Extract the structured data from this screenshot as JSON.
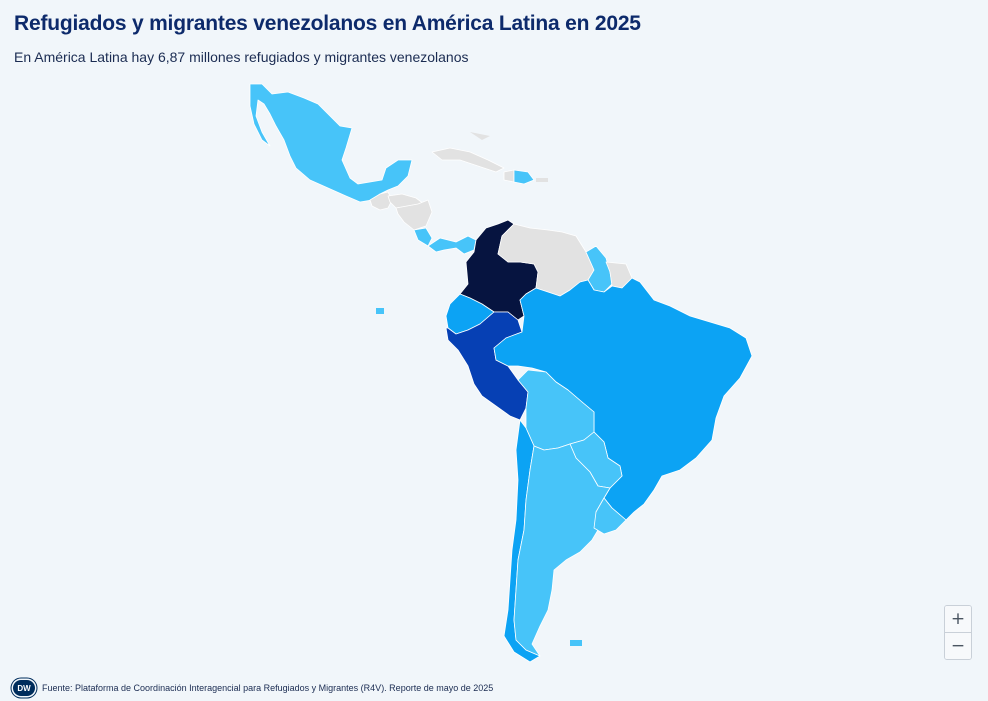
{
  "title": "Refugiados y migrantes venezolanos en América Latina en 2025",
  "subtitle": "En América Latina hay 6,87 millones refugiados y migrantes venezolanos",
  "source": "Fuente: Plataforma de Coordinación Interagencial para Refugiados y Migrantes (R4V). Reporte de mayo de 2025",
  "logo_text": "DW",
  "zoom": {
    "in_label": "+",
    "out_label": "−"
  },
  "colors": {
    "background": "#f1f6fa",
    "no_data": "#e2e2e2",
    "tier_1": "#47c4f9",
    "tier_2": "#0ca3f4",
    "tier_3": "#0640b4",
    "tier_4": "#061440",
    "border": "#ffffff"
  },
  "countries": [
    {
      "name": "México",
      "tier": 1
    },
    {
      "name": "Guatemala",
      "tier": 0
    },
    {
      "name": "Honduras",
      "tier": 0
    },
    {
      "name": "Nicaragua",
      "tier": 0
    },
    {
      "name": "Costa Rica",
      "tier": 1
    },
    {
      "name": "Panamá",
      "tier": 1
    },
    {
      "name": "Cuba",
      "tier": 0
    },
    {
      "name": "Haití",
      "tier": 0
    },
    {
      "name": "República Dominicana",
      "tier": 1
    },
    {
      "name": "Colombia",
      "tier": 4
    },
    {
      "name": "Venezuela",
      "tier": 0
    },
    {
      "name": "Guyana",
      "tier": 1
    },
    {
      "name": "Surinam",
      "tier": 0
    },
    {
      "name": "Ecuador",
      "tier": 2
    },
    {
      "name": "Perú",
      "tier": 3
    },
    {
      "name": "Brasil",
      "tier": 2
    },
    {
      "name": "Bolivia",
      "tier": 1
    },
    {
      "name": "Paraguay",
      "tier": 1
    },
    {
      "name": "Chile",
      "tier": 2
    },
    {
      "name": "Argentina",
      "tier": 1
    },
    {
      "name": "Uruguay",
      "tier": 1
    }
  ]
}
